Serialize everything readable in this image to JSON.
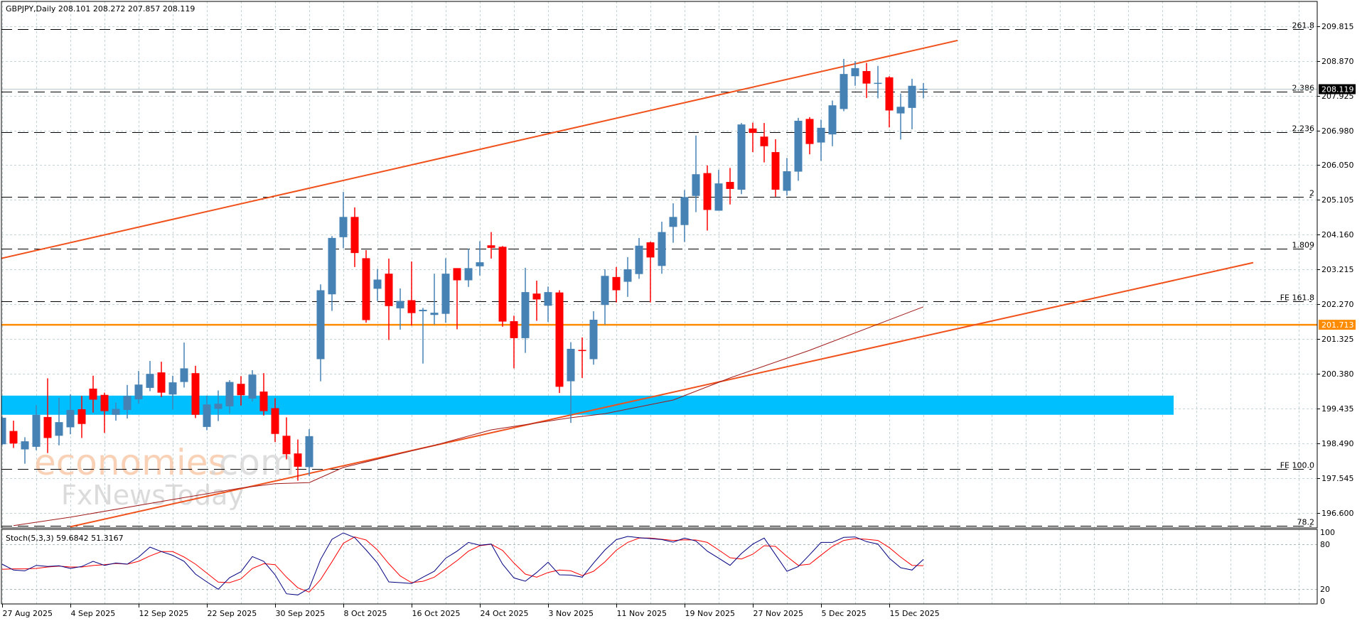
{
  "header": {
    "symbol_line": "GBPJPY,Daily  208.101 208.272 207.857 208.119"
  },
  "watermark": {
    "brand": "economies",
    "brand_suffix": ".com",
    "second_brand": "FxNewsToday"
  },
  "colors": {
    "bull": "#4682b4",
    "bear": "#ff0000",
    "trendline": "#f0501a",
    "ma": "#a01818",
    "level_line": "#ff8c00",
    "zone": "#00bfff",
    "grid": "#c4d4d8",
    "stoch_main": "#000080",
    "stoch_signal": "#ff0000",
    "bid_tag": "#000000"
  },
  "chart_data": [
    {
      "type": "candlestick",
      "symbol": "GBPJPY",
      "timeframe": "Daily",
      "ylim": [
        196.15,
        210.5
      ],
      "grid": true,
      "price_axis_labels": [
        "209.815",
        "208.870",
        "207.925",
        "206.980",
        "206.050",
        "205.105",
        "204.160",
        "203.215",
        "202.270",
        "201.325",
        "200.380",
        "199.435",
        "198.490",
        "197.545",
        "196.600"
      ],
      "time_axis_labels": [
        {
          "date": "2025-08-27",
          "label": "27 Aug 2025"
        },
        {
          "date": "2025-09-04",
          "label": "4 Sep 2025"
        },
        {
          "date": "2025-09-12",
          "label": "12 Sep 2025"
        },
        {
          "date": "2025-09-22",
          "label": "22 Sep 2025"
        },
        {
          "date": "2025-09-30",
          "label": "30 Sep 2025"
        },
        {
          "date": "2025-10-08",
          "label": "8 Oct 2025"
        },
        {
          "date": "2025-10-16",
          "label": "16 Oct 2025"
        },
        {
          "date": "2025-10-24",
          "label": "24 Oct 2025"
        },
        {
          "date": "2025-11-03",
          "label": "3 Nov 2025"
        },
        {
          "date": "2025-11-11",
          "label": "11 Nov 2025"
        },
        {
          "date": "2025-11-19",
          "label": "19 Nov 2025"
        },
        {
          "date": "2025-11-27",
          "label": "27 Nov 2025"
        },
        {
          "date": "2025-12-05",
          "label": "5 Dec 2025"
        },
        {
          "date": "2025-12-15",
          "label": "15 Dec 2025"
        }
      ],
      "candles_columns": [
        "date",
        "open",
        "high",
        "low",
        "close"
      ],
      "candles": [
        [
          "2025-08-27",
          198.47,
          199.22,
          198.45,
          199.19
        ],
        [
          "2025-08-28",
          198.83,
          199.11,
          198.37,
          198.49
        ],
        [
          "2025-08-29",
          198.33,
          198.66,
          197.94,
          198.55
        ],
        [
          "2025-09-01",
          198.4,
          199.53,
          198.31,
          199.27
        ],
        [
          "2025-09-02",
          199.21,
          200.26,
          198.23,
          198.64
        ],
        [
          "2025-09-03",
          198.7,
          199.73,
          198.44,
          199.07
        ],
        [
          "2025-09-04",
          198.93,
          199.82,
          198.74,
          199.4
        ],
        [
          "2025-09-05",
          199.42,
          199.78,
          198.64,
          199.02
        ],
        [
          "2025-09-08",
          199.98,
          200.33,
          199.33,
          199.68
        ],
        [
          "2025-09-09",
          199.81,
          199.87,
          198.78,
          199.37
        ],
        [
          "2025-09-10",
          199.27,
          199.6,
          199.11,
          199.43
        ],
        [
          "2025-09-11",
          199.4,
          200.08,
          199.17,
          199.78
        ],
        [
          "2025-09-12",
          199.69,
          200.46,
          199.57,
          200.09
        ],
        [
          "2025-09-15",
          200.0,
          200.73,
          199.91,
          200.38
        ],
        [
          "2025-09-16",
          200.42,
          200.71,
          199.75,
          199.87
        ],
        [
          "2025-09-17",
          199.82,
          200.33,
          199.41,
          200.15
        ],
        [
          "2025-09-18",
          200.16,
          201.23,
          200.01,
          200.53
        ],
        [
          "2025-09-19",
          200.4,
          200.6,
          199.18,
          199.27
        ],
        [
          "2025-09-22",
          198.94,
          199.79,
          198.85,
          199.55
        ],
        [
          "2025-09-23",
          199.43,
          199.93,
          199.1,
          199.57
        ],
        [
          "2025-09-24",
          199.5,
          200.21,
          199.31,
          200.16
        ],
        [
          "2025-09-25",
          200.11,
          200.32,
          199.52,
          199.8
        ],
        [
          "2025-09-26",
          199.71,
          200.48,
          199.63,
          200.36
        ],
        [
          "2025-09-29",
          199.9,
          200.4,
          199.25,
          199.37
        ],
        [
          "2025-09-30",
          199.45,
          199.72,
          198.53,
          198.75
        ],
        [
          "2025-10-01",
          198.7,
          199.2,
          198.06,
          198.2
        ],
        [
          "2025-10-02",
          198.22,
          198.6,
          197.48,
          197.86
        ],
        [
          "2025-10-03",
          197.85,
          198.88,
          197.61,
          198.69
        ],
        [
          "2025-10-06",
          200.78,
          202.81,
          200.18,
          202.65
        ],
        [
          "2025-10-07",
          202.54,
          204.12,
          202.09,
          204.07
        ],
        [
          "2025-10-08",
          204.09,
          205.32,
          203.79,
          204.64
        ],
        [
          "2025-10-09",
          204.64,
          204.9,
          203.28,
          203.66
        ],
        [
          "2025-10-10",
          203.52,
          203.74,
          201.77,
          201.84
        ],
        [
          "2025-10-13",
          202.69,
          203.23,
          202.36,
          202.94
        ],
        [
          "2025-10-14",
          203.1,
          203.51,
          201.3,
          202.22
        ],
        [
          "2025-10-15",
          202.16,
          202.7,
          201.58,
          202.36
        ],
        [
          "2025-10-16",
          202.38,
          203.43,
          201.69,
          202.03
        ],
        [
          "2025-10-17",
          202.08,
          202.17,
          200.66,
          202.12
        ],
        [
          "2025-10-20",
          201.98,
          203.1,
          201.72,
          202.04
        ],
        [
          "2025-10-21",
          202.01,
          203.52,
          201.77,
          203.1
        ],
        [
          "2025-10-22",
          203.25,
          203.25,
          201.59,
          202.92
        ],
        [
          "2025-10-23",
          202.92,
          203.78,
          202.74,
          203.25
        ],
        [
          "2025-10-24",
          203.3,
          203.98,
          203.05,
          203.41
        ],
        [
          "2025-10-27",
          203.87,
          204.23,
          203.51,
          203.8
        ],
        [
          "2025-10-28",
          203.83,
          203.85,
          201.66,
          201.8
        ],
        [
          "2025-10-29",
          201.81,
          201.96,
          200.53,
          201.35
        ],
        [
          "2025-10-30",
          201.35,
          203.26,
          200.95,
          202.6
        ],
        [
          "2025-10-31",
          202.56,
          202.91,
          201.82,
          202.4
        ],
        [
          "2025-11-03",
          202.23,
          202.75,
          201.79,
          202.6
        ],
        [
          "2025-11-04",
          202.59,
          202.65,
          199.86,
          200.03
        ],
        [
          "2025-11-05",
          200.18,
          201.24,
          199.05,
          201.06
        ],
        [
          "2025-11-06",
          201.03,
          201.37,
          200.27,
          201.0
        ],
        [
          "2025-11-07",
          200.78,
          202.08,
          200.63,
          201.85
        ],
        [
          "2025-11-10",
          202.25,
          203.22,
          201.72,
          203.04
        ],
        [
          "2025-11-11",
          203.01,
          203.28,
          202.32,
          202.65
        ],
        [
          "2025-11-12",
          202.88,
          203.55,
          202.47,
          203.22
        ],
        [
          "2025-11-13",
          203.09,
          204.07,
          202.96,
          203.86
        ],
        [
          "2025-11-14",
          203.95,
          203.97,
          202.32,
          203.54
        ],
        [
          "2025-11-17",
          203.31,
          204.51,
          203.1,
          204.23
        ],
        [
          "2025-11-18",
          204.37,
          205.01,
          203.94,
          204.64
        ],
        [
          "2025-11-19",
          204.42,
          205.37,
          203.96,
          205.18
        ],
        [
          "2025-11-20",
          205.21,
          206.85,
          204.77,
          205.8
        ],
        [
          "2025-11-21",
          205.83,
          206.04,
          204.27,
          204.83
        ],
        [
          "2025-11-24",
          204.81,
          205.92,
          204.81,
          205.55
        ],
        [
          "2025-11-25",
          205.59,
          205.97,
          204.98,
          205.4
        ],
        [
          "2025-11-26",
          205.38,
          207.19,
          205.26,
          207.15
        ],
        [
          "2025-11-27",
          207.04,
          207.2,
          206.4,
          206.92
        ],
        [
          "2025-11-28",
          206.82,
          207.19,
          206.12,
          206.56
        ],
        [
          "2025-12-01",
          206.4,
          206.75,
          205.19,
          205.38
        ],
        [
          "2025-12-02",
          205.35,
          206.24,
          205.22,
          205.88
        ],
        [
          "2025-12-03",
          205.87,
          207.33,
          205.62,
          207.25
        ],
        [
          "2025-12-04",
          207.3,
          207.35,
          206.34,
          206.62
        ],
        [
          "2025-12-05",
          206.66,
          207.28,
          206.16,
          207.06
        ],
        [
          "2025-12-08",
          206.88,
          207.8,
          206.56,
          207.67
        ],
        [
          "2025-12-09",
          207.57,
          208.93,
          207.51,
          208.52
        ],
        [
          "2025-12-10",
          208.46,
          208.87,
          208.2,
          208.68
        ],
        [
          "2025-12-11",
          208.6,
          208.82,
          207.87,
          208.26
        ],
        [
          "2025-12-12",
          208.26,
          208.74,
          207.86,
          208.28
        ],
        [
          "2025-12-15",
          208.43,
          208.46,
          207.07,
          207.53
        ],
        [
          "2025-12-16",
          207.45,
          207.99,
          206.74,
          207.63
        ],
        [
          "2025-12-17",
          207.6,
          208.39,
          207.02,
          208.2
        ],
        [
          "2025-12-18",
          208.101,
          208.272,
          207.857,
          208.119
        ]
      ],
      "moving_average": [
        [
          "2025-08-28",
          196.26
        ],
        [
          "2025-09-04",
          196.49
        ],
        [
          "2025-09-17",
          196.97
        ],
        [
          "2025-09-25",
          197.28
        ],
        [
          "2025-09-30",
          197.4
        ],
        [
          "2025-10-03",
          197.43
        ],
        [
          "2025-10-08",
          197.84
        ],
        [
          "2025-10-20",
          198.44
        ],
        [
          "2025-10-27",
          198.86
        ],
        [
          "2025-11-05",
          199.19
        ],
        [
          "2025-11-10",
          199.3
        ],
        [
          "2025-11-18",
          199.67
        ],
        [
          "2025-11-25",
          200.27
        ],
        [
          "2025-12-04",
          201.02
        ],
        [
          "2025-12-18",
          202.2
        ]
      ],
      "trendlines": [
        {
          "from": [
            "2025-08-26",
            203.45
          ],
          "to": [
            "2025-12-23",
            209.43
          ]
        },
        {
          "from": [
            "2025-09-04",
            196.23
          ],
          "to": [
            "2026-01-28",
            203.4
          ]
        }
      ],
      "horizontal_level": {
        "price": 201.713,
        "label": "201.713"
      },
      "zone": {
        "price_low": 199.27,
        "price_high": 199.79,
        "end_date": "2026-01-19"
      },
      "bid": {
        "price": 208.119,
        "label": "208.119"
      },
      "fib_levels": [
        {
          "label": "261.8",
          "price": 209.74
        },
        {
          "label": "2.386",
          "price": 208.05
        },
        {
          "label": "2.236",
          "price": 206.94
        },
        {
          "label": "2",
          "price": 205.18
        },
        {
          "label": "1.809",
          "price": 203.77
        },
        {
          "label": "FE 161.8",
          "price": 202.36
        },
        {
          "label": "FE 100.0",
          "price": 197.79
        },
        {
          "label": "78.2",
          "price": 196.25
        }
      ]
    },
    {
      "type": "line",
      "title": "Stoch(5,3,3) 59.6842 51.3167",
      "ylim": [
        0,
        100
      ],
      "levels": [
        20,
        80
      ],
      "axis_labels": [
        "100",
        "80",
        "20",
        "0"
      ],
      "main": [
        53.3,
        45.4,
        44.4,
        51.7,
        50.2,
        51.1,
        47.6,
        50.2,
        57.1,
        51.7,
        54.9,
        53.3,
        62.9,
        76.2,
        70.2,
        65.1,
        57.1,
        40,
        29.5,
        19.7,
        35.2,
        43.2,
        63.5,
        57.1,
        39,
        13.6,
        12.1,
        21,
        59.7,
        86.7,
        95.2,
        88.9,
        72.4,
        54.9,
        29.5,
        28.6,
        27.3,
        35.9,
        43.8,
        61.3,
        70.8,
        82.5,
        78.7,
        80.3,
        53.3,
        34.9,
        30.5,
        42.2,
        55.9,
        39,
        38.7,
        35.9,
        54.9,
        72.4,
        86.2,
        90.5,
        88.9,
        87.6,
        86.3,
        82.9,
        88.3,
        84.4,
        70.8,
        61.3,
        51.7,
        67.6,
        80.3,
        88.3,
        66,
        43.8,
        50.2,
        66,
        82.5,
        82.5,
        89.2,
        89.8,
        83.5,
        80.3,
        61.3,
        48.6,
        45.4,
        59.68
      ],
      "signal": [
        46.4,
        47,
        47,
        47.6,
        49.5,
        50.8,
        49.5,
        49.5,
        51.5,
        52.7,
        54.3,
        53.3,
        57.1,
        64.4,
        70.2,
        70.2,
        62.9,
        53.3,
        41.3,
        29.2,
        28.6,
        33.6,
        47.6,
        53.9,
        52.7,
        35.9,
        21.6,
        15.9,
        32.7,
        56.5,
        81.3,
        89.8,
        85.7,
        72.4,
        53.9,
        37.5,
        28.6,
        30.4,
        35.9,
        47,
        58.1,
        70.8,
        78.1,
        80,
        71.7,
        54.9,
        40,
        35.9,
        42.2,
        45.4,
        44.4,
        38.1,
        43.8,
        56.5,
        72,
        82.5,
        88.3,
        88.3,
        86.7,
        85.1,
        86,
        85.7,
        82.5,
        72.4,
        61.9,
        60.3,
        66.7,
        78.1,
        77.1,
        63.5,
        51.7,
        53.3,
        65.4,
        77.1,
        85.1,
        87.6,
        86.7,
        85.1,
        75.5,
        62.9,
        51.7,
        51.32
      ]
    }
  ]
}
